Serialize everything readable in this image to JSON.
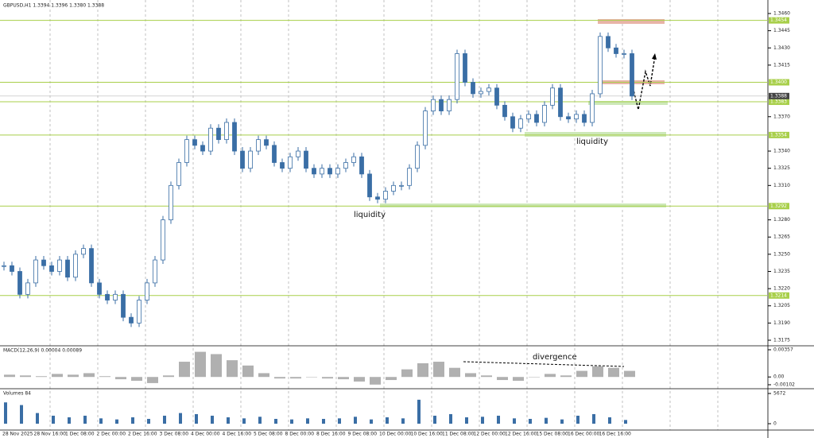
{
  "header": {
    "symbol": "GBPUSD,H1 1.3394 1.3396 1.3380 1.3388"
  },
  "price_axis": {
    "lim": [
      1.3175,
      1.346
    ],
    "ticks": [
      {
        "value": 1.346,
        "label": "1.3460"
      },
      {
        "value": 1.3445,
        "label": "1.3445"
      },
      {
        "value": 1.343,
        "label": "1.3430"
      },
      {
        "value": 1.3415,
        "label": "1.3415"
      },
      {
        "value": 1.337,
        "label": "1.3370"
      },
      {
        "value": 1.334,
        "label": "1.3340"
      },
      {
        "value": 1.3325,
        "label": "1.3325"
      },
      {
        "value": 1.331,
        "label": "1.3310"
      },
      {
        "value": 1.328,
        "label": "1.3280"
      },
      {
        "value": 1.3265,
        "label": "1.3265"
      },
      {
        "value": 1.325,
        "label": "1.3250"
      },
      {
        "value": 1.3235,
        "label": "1.3235"
      },
      {
        "value": 1.322,
        "label": "1.3220"
      },
      {
        "value": 1.3205,
        "label": "1.3205"
      },
      {
        "value": 1.319,
        "label": "1.3190"
      },
      {
        "value": 1.3175,
        "label": "1.3175"
      }
    ]
  },
  "levels": [
    {
      "value": 1.3454,
      "label": "1.3454"
    },
    {
      "value": 1.34,
      "label": "1.3400"
    },
    {
      "value": 1.3383,
      "label": "1.3383"
    },
    {
      "value": 1.3354,
      "label": "1.3354"
    },
    {
      "value": 1.3292,
      "label": "1.3292"
    },
    {
      "value": 1.3214,
      "label": "1.3214"
    }
  ],
  "current_price": {
    "value": 1.3388,
    "label": "1.3388"
  },
  "time_axis": [
    "28 Nov 2025",
    "28 Nov 16:00",
    "1 Dec 08:00",
    "2 Dec 00:00",
    "2 Dec 16:00",
    "3 Dec 08:00",
    "4 Dec 00:00",
    "4 Dec 16:00",
    "5 Dec 08:00",
    "8 Dec 00:00",
    "8 Dec 16:00",
    "9 Dec 08:00",
    "10 Dec 00:00",
    "10 Dec 16:00",
    "11 Dec 08:00",
    "12 Dec 00:00",
    "12 Dec 16:00",
    "15 Dec 08:00",
    "16 Dec 00:00",
    "16 Dec 16:00"
  ],
  "closes": [
    1.324,
    1.3235,
    1.3215,
    1.3225,
    1.3245,
    1.324,
    1.3235,
    1.3245,
    1.323,
    1.325,
    1.3255,
    1.3225,
    1.3215,
    1.321,
    1.3215,
    1.3195,
    1.319,
    1.321,
    1.3225,
    1.3245,
    1.328,
    1.331,
    1.333,
    1.335,
    1.3345,
    1.334,
    1.336,
    1.335,
    1.3365,
    1.334,
    1.3325,
    1.334,
    1.335,
    1.3345,
    1.333,
    1.3325,
    1.3335,
    1.334,
    1.3325,
    1.332,
    1.3325,
    1.332,
    1.3325,
    1.333,
    1.3335,
    1.332,
    1.33,
    1.3298,
    1.3305,
    1.331,
    1.331,
    1.3325,
    1.3345,
    1.3375,
    1.3385,
    1.3375,
    1.3385,
    1.3425,
    1.34,
    1.339,
    1.3392,
    1.3395,
    1.338,
    1.337,
    1.336,
    1.3368,
    1.3372,
    1.3365,
    1.338,
    1.3395,
    1.337,
    1.3368,
    1.3372,
    1.3365,
    1.339,
    1.344,
    1.343,
    1.3425,
    1.3425,
    1.3388
  ],
  "annotations": [
    "liquidity",
    "liquidity",
    "divergence"
  ],
  "macd": {
    "label": "MACD(12,26,9) 0.00004 0.00089",
    "lim": [
      -0.00102,
      0.00357
    ],
    "ticks": [
      {
        "value": 0.00357,
        "label": "0.00357"
      },
      {
        "value": 0,
        "label": "0.00"
      },
      {
        "value": -0.00102,
        "label": "-0.00102"
      }
    ],
    "hist": [
      0.0003,
      0.0002,
      0.0001,
      0.0004,
      0.0003,
      0.0005,
      0.0001,
      -0.0003,
      -0.0005,
      -0.0008,
      0.0002,
      0.002,
      0.0033,
      0.003,
      0.0022,
      0.0015,
      0.0005,
      -0.0002,
      -0.0002,
      0,
      -0.0002,
      -0.0003,
      -0.0006,
      -0.001,
      -0.0004,
      0.001,
      0.0018,
      0.002,
      0.0012,
      0.0005,
      0.0002,
      -0.0004,
      -0.0005,
      0,
      0.0004,
      0.0002,
      0.0008,
      0.0014,
      0.0012,
      0.0008
    ]
  },
  "volume": {
    "label": "Volumes 84",
    "lim": [
      0,
      5672
    ],
    "ticks": [
      5672,
      0
    ],
    "values": [
      4000,
      3500,
      2000,
      1500,
      1200,
      1500,
      1000,
      800,
      1200,
      900,
      1500,
      2000,
      1800,
      1500,
      1200,
      1000,
      1300,
      900,
      800,
      1000,
      900,
      1000,
      1300,
      800,
      1200,
      1000,
      4500,
      1500,
      1800,
      1200,
      1300,
      1500,
      1000,
      900,
      1100,
      800,
      1500,
      1800,
      1200,
      700
    ]
  }
}
